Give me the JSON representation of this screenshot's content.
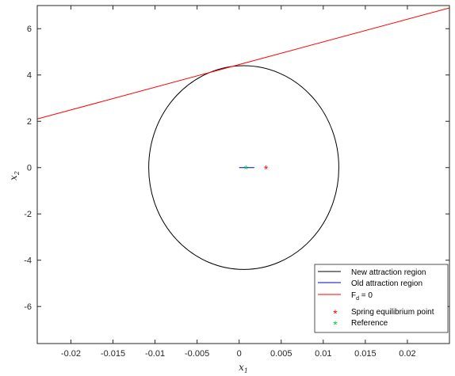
{
  "chart_data": {
    "type": "line",
    "xlabel": "x",
    "xlabel_sub": "1",
    "ylabel": "x",
    "ylabel_sub": "2",
    "xlim": [
      -0.024,
      0.025
    ],
    "ylim": [
      -7.6,
      7
    ],
    "x_ticks": [
      -0.02,
      -0.015,
      -0.01,
      -0.005,
      0,
      0.005,
      0.01,
      0.015,
      0.02
    ],
    "x_tick_labels": [
      "-0.02",
      "-0.015",
      "-0.01",
      "-0.005",
      "0",
      "0.005",
      "0.01",
      "0.015",
      "0.02"
    ],
    "y_ticks": [
      -6,
      -4,
      -2,
      0,
      2,
      4,
      6
    ],
    "y_tick_labels": [
      "-6",
      "-4",
      "-2",
      "0",
      "2",
      "4",
      "6"
    ],
    "grid": false,
    "legend_position": "bottom-right",
    "series": [
      {
        "name": "New attraction region",
        "kind": "ellipse",
        "color": "#000000",
        "center": [
          0.00055,
          0
        ],
        "radii": [
          0.0113,
          4.4
        ]
      },
      {
        "name": "Old attraction region",
        "kind": "segment",
        "color": "#0000cc",
        "x": [
          0,
          0.0018
        ],
        "y": [
          0,
          0
        ]
      },
      {
        "name": "F",
        "name_sub": "d",
        "name_suffix": " = 0",
        "kind": "line",
        "color": "#ff0000",
        "x": [
          -0.024,
          0.025
        ],
        "y": [
          2.1,
          6.9
        ]
      },
      {
        "name": "Spring equilibrium point",
        "kind": "marker",
        "color": "#ff0000",
        "x": [
          0.0032
        ],
        "y": [
          0
        ]
      },
      {
        "name": "Reference",
        "kind": "marker",
        "color": "#00cc44",
        "x": [
          0.0008
        ],
        "y": [
          0
        ]
      }
    ]
  }
}
